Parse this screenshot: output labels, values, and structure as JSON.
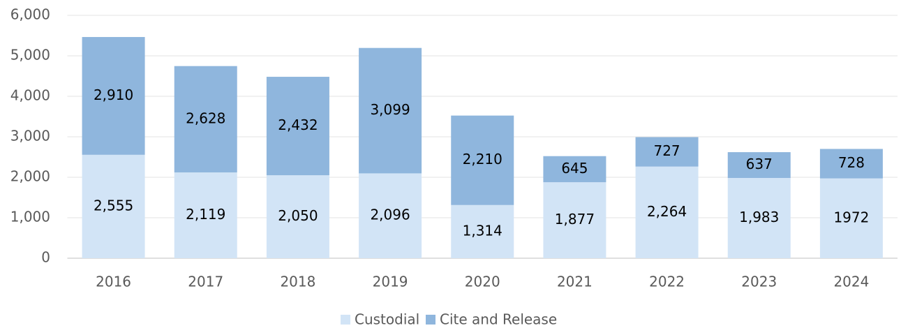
{
  "chart_data": {
    "type": "stacked_bar",
    "categories": [
      "2016",
      "2017",
      "2018",
      "2019",
      "2020",
      "2021",
      "2022",
      "2023",
      "2024"
    ],
    "series": [
      {
        "name": "Custodial",
        "color": "#d2e4f6",
        "values": [
          2555,
          2119,
          2050,
          2096,
          1314,
          1877,
          2264,
          1983,
          1972
        ],
        "value_labels": [
          "2,555",
          "2,119",
          "2,050",
          "2,096",
          "1,314",
          "1,877",
          "2,264",
          "1,983",
          "1972"
        ]
      },
      {
        "name": "Cite and Release",
        "color": "#8fb6dd",
        "values": [
          2910,
          2628,
          2432,
          3099,
          2210,
          645,
          727,
          637,
          728
        ],
        "value_labels": [
          "2,910",
          "2,628",
          "2,432",
          "3,099",
          "2,210",
          "645",
          "727",
          "637",
          "728"
        ]
      }
    ],
    "ylim": [
      0,
      6000
    ],
    "yticks": [
      0,
      {
        "value": 1000,
        "label": "1,000"
      },
      {
        "value": 2000,
        "label": "2,000"
      },
      {
        "value": 3000,
        "label": "3,000"
      },
      {
        "value": 4000,
        "label": "4,000"
      },
      {
        "value": 5000,
        "label": "5,000"
      },
      {
        "value": 6000,
        "label": "6,000"
      }
    ],
    "grid": true,
    "legend": "bottom"
  }
}
